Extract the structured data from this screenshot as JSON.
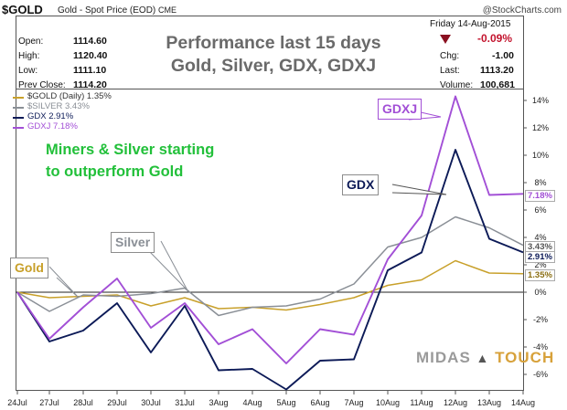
{
  "header": {
    "symbol": "$GOLD",
    "description": "Gold - Spot Price (EOD)",
    "exchange": "CME",
    "watermark": "@StockCharts.com",
    "date": "Friday  14-Aug-2015"
  },
  "stats_left": [
    {
      "label": "Open:",
      "value": "1114.60"
    },
    {
      "label": "High:",
      "value": "1120.40"
    },
    {
      "label": "Low:",
      "value": "1111.10"
    },
    {
      "label": "Prev Close:",
      "value": "1114.20"
    }
  ],
  "stats_right": {
    "change_pct": "-0.09%",
    "rows": [
      {
        "label": "Chg:",
        "value": "-1.00"
      },
      {
        "label": "Last:",
        "value": "1113.20"
      },
      {
        "label": "Volume:",
        "value": "100,681"
      }
    ]
  },
  "headline": [
    "Performance last 15 days",
    "Gold, Silver, GDX, GDXJ"
  ],
  "annotation": [
    "Miners & Silver starting",
    "to outperform Gold"
  ],
  "legend": [
    {
      "text": "$GOLD (Daily) 1.35%",
      "color": "#c8a02a"
    },
    {
      "text": "$SILVER 3.43%",
      "color": "#8a8f96"
    },
    {
      "text": "GDX 2.91%",
      "color": "#0c1a57"
    },
    {
      "text": "GDXJ 7.18%",
      "color": "#a24fd6"
    }
  ],
  "callouts": {
    "gdxj": "GDXJ",
    "gdx": "GDX",
    "silver": "Silver",
    "gold": "Gold"
  },
  "end_labels": [
    "7.18%",
    "3.43%",
    "2.91%",
    "1.35%"
  ],
  "logo": {
    "left": "MIDAS",
    "right": "TOUCH"
  },
  "chart_data": {
    "type": "line",
    "x": [
      "24Jul",
      "27Jul",
      "28Jul",
      "29Jul",
      "30Jul",
      "31Jul",
      "3Aug",
      "4Aug",
      "5Aug",
      "6Aug",
      "7Aug",
      "10Aug",
      "11Aug",
      "12Aug",
      "13Aug",
      "14Aug"
    ],
    "ylim": [
      -7,
      15
    ],
    "yticks": [
      -6,
      -4,
      -2,
      0,
      2,
      4,
      6,
      8,
      10,
      12,
      14
    ],
    "ytick_labels": [
      "-6%",
      "-4%",
      "-2%",
      "0%",
      "2%",
      "4%",
      "6%",
      "8%",
      "10%",
      "12%",
      "14%"
    ],
    "grid": false,
    "legend_position": "top-left",
    "series": [
      {
        "name": "$GOLD (Daily) 1.35%",
        "color": "#c8a02a",
        "values": [
          0,
          -0.4,
          -0.3,
          -0.2,
          -1.0,
          -0.4,
          -1.2,
          -1.1,
          -1.3,
          -0.9,
          -0.4,
          0.5,
          0.9,
          2.3,
          1.4,
          1.35
        ]
      },
      {
        "name": "$SILVER 3.43%",
        "color": "#8a8f96",
        "values": [
          0,
          -1.4,
          -0.2,
          -0.3,
          -0.1,
          0.3,
          -1.7,
          -1.1,
          -1.0,
          -0.5,
          0.6,
          3.3,
          4.0,
          5.5,
          4.7,
          3.43
        ]
      },
      {
        "name": "GDX 2.91%",
        "color": "#0c1a57",
        "values": [
          0,
          -3.6,
          -2.8,
          -0.8,
          -4.4,
          -1.0,
          -5.7,
          -5.6,
          -7.1,
          -5.0,
          -4.9,
          1.6,
          2.9,
          10.4,
          3.9,
          2.91
        ]
      },
      {
        "name": "GDXJ 7.18%",
        "color": "#a24fd6",
        "values": [
          0,
          -3.4,
          -1.1,
          1.0,
          -2.6,
          -0.8,
          -3.8,
          -2.7,
          -5.2,
          -2.7,
          -3.1,
          2.4,
          5.6,
          14.3,
          7.1,
          7.18
        ]
      }
    ]
  }
}
